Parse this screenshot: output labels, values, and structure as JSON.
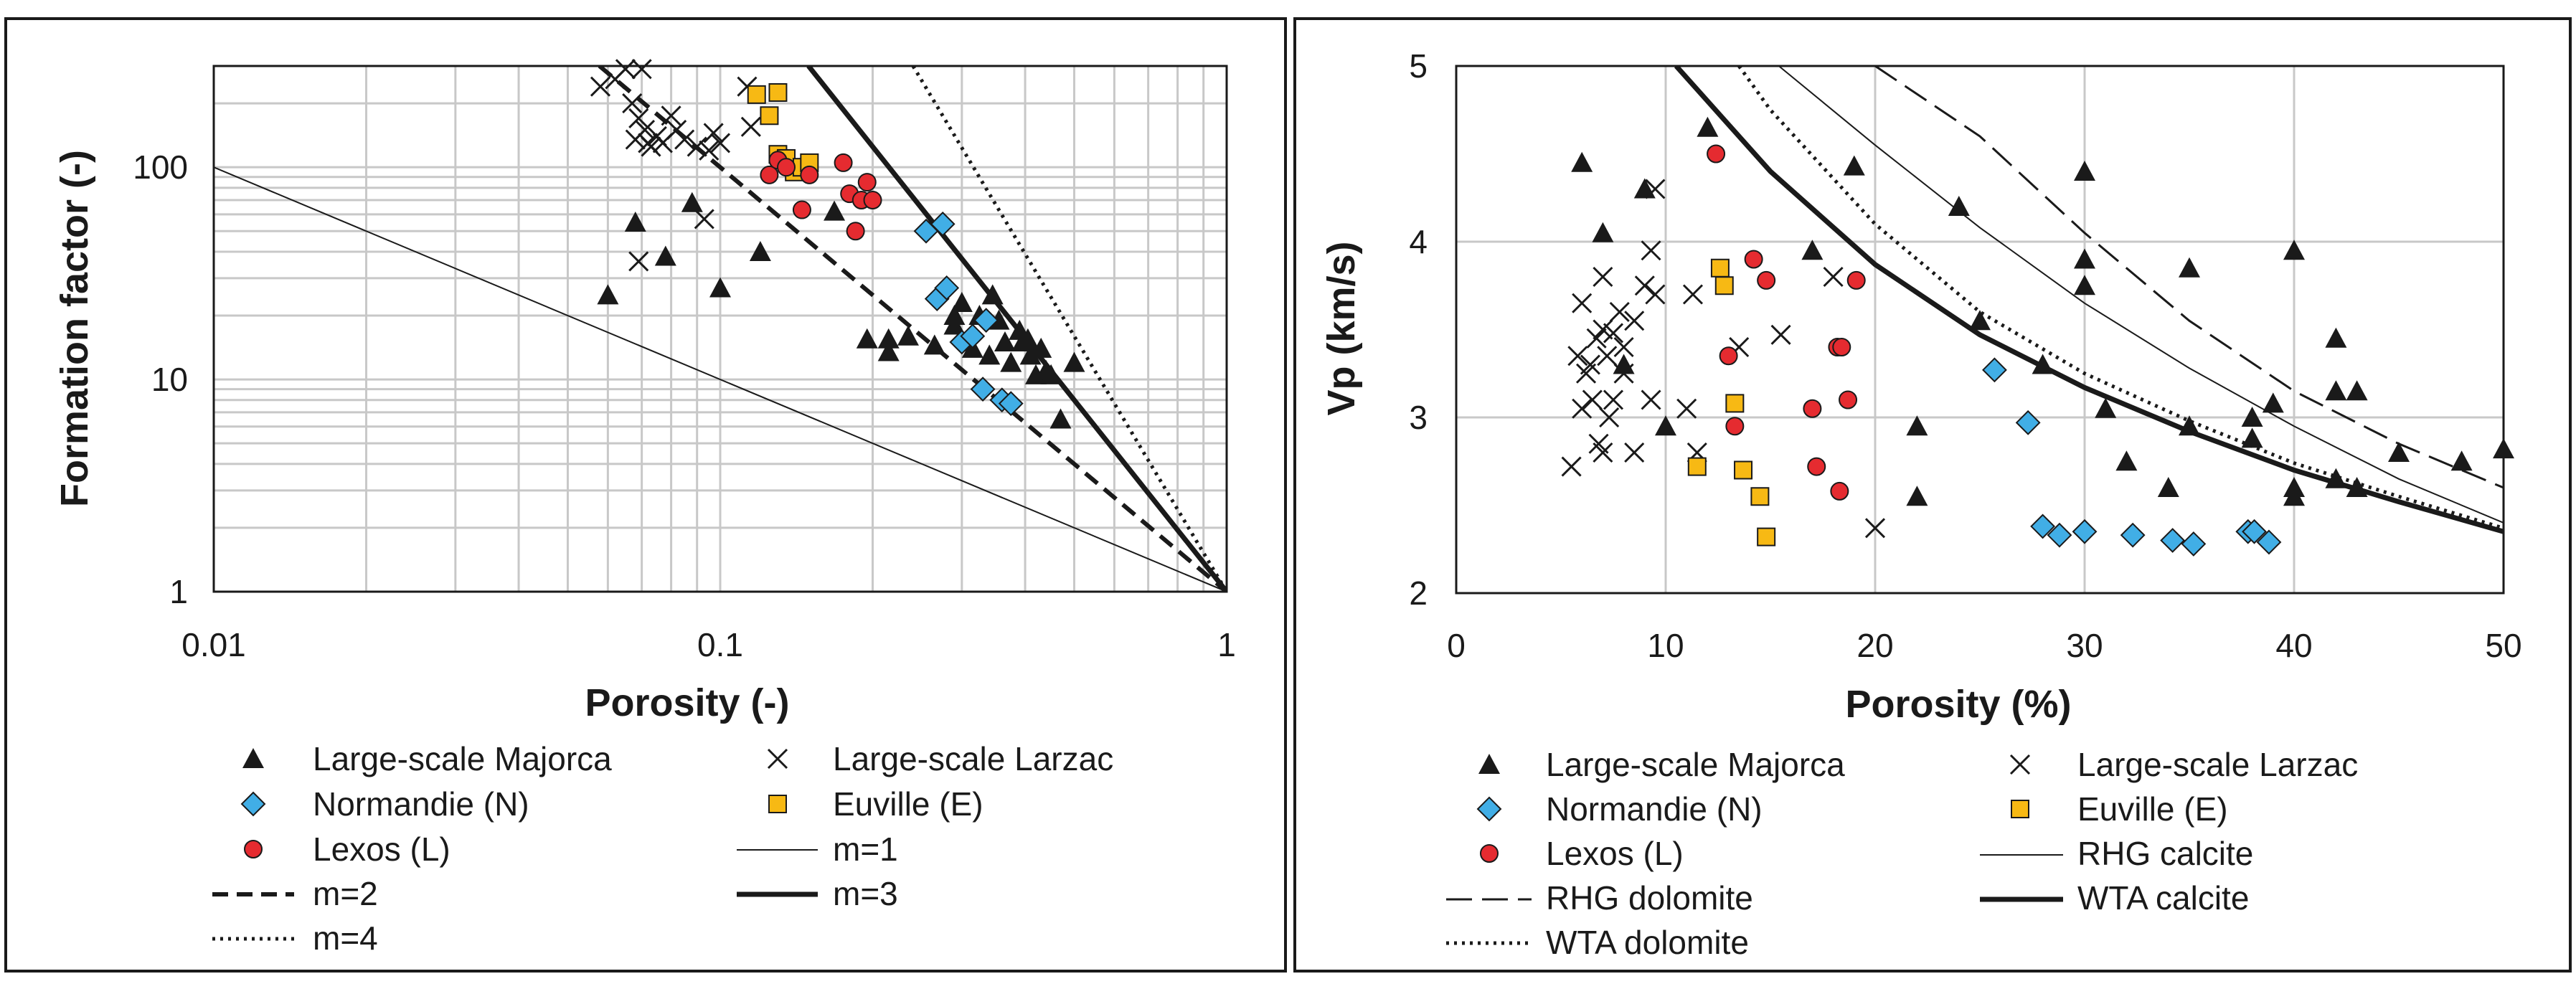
{
  "colors": {
    "triangle": "#1a1a1a",
    "normandie": "#41aee6",
    "euville": "#f7b914",
    "lexos": "#e52b30",
    "grid": "#c8c8c8"
  },
  "chart_data": [
    {
      "type": "scatter",
      "x_scale": "log",
      "y_scale": "log",
      "xlabel": "Porosity (-)",
      "ylabel": "Formation factor (-)",
      "xlim": [
        0.01,
        1
      ],
      "ylim": [
        1,
        300
      ],
      "x_ticks": [
        {
          "v": 0.01,
          "label": "0.01"
        },
        {
          "v": 0.1,
          "label": "0.1"
        },
        {
          "v": 1,
          "label": "1"
        }
      ],
      "y_ticks": [
        {
          "v": 1,
          "label": "1"
        },
        {
          "v": 10,
          "label": "10"
        },
        {
          "v": 100,
          "label": "100"
        }
      ],
      "legend_position": "bottom",
      "series": [
        {
          "name": "Large-scale Majorca",
          "marker": "triangle",
          "points": [
            [
              0.06,
              25
            ],
            [
              0.068,
              55
            ],
            [
              0.078,
              38
            ],
            [
              0.088,
              68
            ],
            [
              0.1,
              27
            ],
            [
              0.12,
              40
            ],
            [
              0.168,
              62
            ],
            [
              0.195,
              15.5
            ],
            [
              0.215,
              13.5
            ],
            [
              0.215,
              15.5
            ],
            [
              0.235,
              16
            ],
            [
              0.265,
              14.5
            ],
            [
              0.29,
              18
            ],
            [
              0.29,
              20
            ],
            [
              0.3,
              23
            ],
            [
              0.315,
              14
            ],
            [
              0.325,
              20
            ],
            [
              0.34,
              13
            ],
            [
              0.345,
              25
            ],
            [
              0.355,
              19
            ],
            [
              0.365,
              15
            ],
            [
              0.375,
              12
            ],
            [
              0.39,
              17
            ],
            [
              0.395,
              15
            ],
            [
              0.405,
              15.5
            ],
            [
              0.41,
              13
            ],
            [
              0.42,
              10.5
            ],
            [
              0.43,
              14
            ],
            [
              0.44,
              11
            ],
            [
              0.45,
              10.5
            ],
            [
              0.47,
              6.5
            ],
            [
              0.5,
              12
            ]
          ]
        },
        {
          "name": "Large-scale Larzac",
          "marker": "cross",
          "points": [
            [
              0.058,
              240
            ],
            [
              0.062,
              260
            ],
            [
              0.065,
              290
            ],
            [
              0.067,
              200
            ],
            [
              0.068,
              135
            ],
            [
              0.069,
              170
            ],
            [
              0.07,
              290
            ],
            [
              0.071,
              150
            ],
            [
              0.072,
              130
            ],
            [
              0.073,
              125
            ],
            [
              0.075,
              140
            ],
            [
              0.077,
              130
            ],
            [
              0.08,
              175
            ],
            [
              0.082,
              150
            ],
            [
              0.085,
              135
            ],
            [
              0.09,
              125
            ],
            [
              0.095,
              120
            ],
            [
              0.097,
              145
            ],
            [
              0.1,
              130
            ],
            [
              0.113,
              240
            ],
            [
              0.115,
              155
            ],
            [
              0.069,
              36
            ],
            [
              0.093,
              57
            ]
          ]
        },
        {
          "name": "Normandie (N)",
          "marker": "diamond",
          "points": [
            [
              0.255,
              50
            ],
            [
              0.275,
              54
            ],
            [
              0.268,
              24
            ],
            [
              0.28,
              27
            ],
            [
              0.3,
              15
            ],
            [
              0.315,
              16
            ],
            [
              0.335,
              19
            ],
            [
              0.33,
              9
            ],
            [
              0.36,
              8
            ],
            [
              0.375,
              7.7
            ]
          ]
        },
        {
          "name": "Euville (E)",
          "marker": "square",
          "points": [
            [
              0.118,
              220
            ],
            [
              0.125,
              175
            ],
            [
              0.13,
              225
            ],
            [
              0.13,
              115
            ],
            [
              0.135,
              110
            ],
            [
              0.14,
              95
            ],
            [
              0.145,
              100
            ],
            [
              0.15,
              105
            ]
          ]
        },
        {
          "name": "Lexos (L)",
          "marker": "circle",
          "points": [
            [
              0.125,
              92
            ],
            [
              0.13,
              108
            ],
            [
              0.135,
              100
            ],
            [
              0.145,
              63
            ],
            [
              0.15,
              92
            ],
            [
              0.175,
              105
            ],
            [
              0.18,
              75
            ],
            [
              0.185,
              50
            ],
            [
              0.19,
              70
            ],
            [
              0.195,
              85
            ],
            [
              0.2,
              70
            ]
          ]
        },
        {
          "name": "m=1",
          "line": "thin",
          "exponent": 1
        },
        {
          "name": "m=2",
          "line": "dashed",
          "exponent": 2
        },
        {
          "name": "m=3",
          "line": "thick",
          "exponent": 3
        },
        {
          "name": "m=4",
          "line": "dotted",
          "exponent": 4
        }
      ]
    },
    {
      "type": "scatter",
      "x_scale": "linear",
      "y_scale": "linear",
      "xlabel": "Porosity (%)",
      "ylabel": "Vp (km/s)",
      "xlim": [
        0,
        50
      ],
      "ylim": [
        2,
        5
      ],
      "x_ticks": [
        {
          "v": 0,
          "label": "0"
        },
        {
          "v": 10,
          "label": "10"
        },
        {
          "v": 20,
          "label": "20"
        },
        {
          "v": 30,
          "label": "30"
        },
        {
          "v": 40,
          "label": "40"
        },
        {
          "v": 50,
          "label": "50"
        }
      ],
      "y_ticks": [
        {
          "v": 2,
          "label": "2"
        },
        {
          "v": 3,
          "label": "3"
        },
        {
          "v": 4,
          "label": "4"
        },
        {
          "v": 5,
          "label": "5"
        }
      ],
      "legend_position": "bottom",
      "series": [
        {
          "name": "Large-scale Majorca",
          "marker": "triangle",
          "points": [
            [
              6,
              4.45
            ],
            [
              7,
              4.05
            ],
            [
              8,
              3.3
            ],
            [
              9,
              4.3
            ],
            [
              10,
              2.95
            ],
            [
              12,
              4.65
            ],
            [
              17,
              3.95
            ],
            [
              19,
              4.43
            ],
            [
              22,
              2.95
            ],
            [
              22,
              2.55
            ],
            [
              24,
              4.2
            ],
            [
              25,
              3.55
            ],
            [
              28,
              3.3
            ],
            [
              30,
              4.4
            ],
            [
              30,
              3.9
            ],
            [
              30,
              3.75
            ],
            [
              31,
              3.05
            ],
            [
              32,
              2.75
            ],
            [
              35,
              3.85
            ],
            [
              35,
              2.95
            ],
            [
              38,
              3.0
            ],
            [
              38,
              2.88
            ],
            [
              39,
              3.08
            ],
            [
              40,
              3.95
            ],
            [
              40,
              2.55
            ],
            [
              40,
              2.6
            ],
            [
              42,
              3.45
            ],
            [
              42,
              3.15
            ],
            [
              42,
              2.65
            ],
            [
              43,
              3.15
            ],
            [
              43,
              2.6
            ],
            [
              45,
              2.8
            ],
            [
              48,
              2.75
            ],
            [
              50,
              2.82
            ],
            [
              34,
              2.6
            ]
          ]
        },
        {
          "name": "Large-scale Larzac",
          "marker": "cross",
          "points": [
            [
              5.5,
              2.72
            ],
            [
              5.8,
              3.35
            ],
            [
              6,
              3.65
            ],
            [
              6,
              3.05
            ],
            [
              6.2,
              3.25
            ],
            [
              6.4,
              3.3
            ],
            [
              6.5,
              3.1
            ],
            [
              6.7,
              3.45
            ],
            [
              6.8,
              2.85
            ],
            [
              7,
              3.5
            ],
            [
              7,
              3.8
            ],
            [
              7.2,
              3.35
            ],
            [
              7.3,
              3.0
            ],
            [
              7.5,
              3.48
            ],
            [
              7.5,
              3.1
            ],
            [
              7.8,
              3.6
            ],
            [
              8,
              3.4
            ],
            [
              8,
              3.25
            ],
            [
              8.5,
              3.55
            ],
            [
              9,
              3.75
            ],
            [
              9.3,
              3.95
            ],
            [
              9.5,
              3.7
            ],
            [
              9.5,
              4.3
            ],
            [
              8.5,
              2.8
            ],
            [
              11,
              3.05
            ],
            [
              11.3,
              3.7
            ],
            [
              11.5,
              2.8
            ],
            [
              13.5,
              3.4
            ],
            [
              15.5,
              3.47
            ],
            [
              18,
              3.8
            ],
            [
              20,
              2.37
            ],
            [
              9.3,
              3.1
            ],
            [
              7,
              2.8
            ]
          ]
        },
        {
          "name": "Normandie (N)",
          "marker": "diamond",
          "points": [
            [
              25.7,
              3.27
            ],
            [
              27.3,
              2.97
            ],
            [
              28,
              2.38
            ],
            [
              28.8,
              2.33
            ],
            [
              30,
              2.35
            ],
            [
              32.3,
              2.33
            ],
            [
              34.2,
              2.3
            ],
            [
              35.2,
              2.28
            ],
            [
              37.8,
              2.35
            ],
            [
              38.1,
              2.35
            ],
            [
              38.8,
              2.29
            ]
          ]
        },
        {
          "name": "Euville (E)",
          "marker": "square",
          "points": [
            [
              12.6,
              3.85
            ],
            [
              12.8,
              3.75
            ],
            [
              13.3,
              3.08
            ],
            [
              11.5,
              2.72
            ],
            [
              13.7,
              2.7
            ],
            [
              14.5,
              2.55
            ],
            [
              14.8,
              2.32
            ]
          ]
        },
        {
          "name": "Lexos (L)",
          "marker": "circle",
          "points": [
            [
              12.4,
              4.5
            ],
            [
              14.2,
              3.9
            ],
            [
              14.8,
              3.78
            ],
            [
              13,
              3.35
            ],
            [
              13.3,
              2.95
            ],
            [
              17,
              3.05
            ],
            [
              17.2,
              2.72
            ],
            [
              18.2,
              3.4
            ],
            [
              18.4,
              3.4
            ],
            [
              18.3,
              2.58
            ],
            [
              18.7,
              3.1
            ],
            [
              19.1,
              3.78
            ]
          ]
        },
        {
          "name": "RHG calcite",
          "line": "thin",
          "points": [
            [
              15.4,
              5.0
            ],
            [
              20,
              4.55
            ],
            [
              25,
              4.08
            ],
            [
              30,
              3.65
            ],
            [
              35,
              3.28
            ],
            [
              40,
              2.95
            ],
            [
              45,
              2.65
            ],
            [
              50,
              2.4
            ]
          ]
        },
        {
          "name": "RHG dolomite",
          "line": "dashed",
          "points": [
            [
              20,
              5.0
            ],
            [
              25,
              4.6
            ],
            [
              30,
              4.05
            ],
            [
              35,
              3.55
            ],
            [
              40,
              3.15
            ],
            [
              45,
              2.85
            ],
            [
              50,
              2.6
            ]
          ]
        },
        {
          "name": "WTA calcite",
          "line": "thick",
          "points": [
            [
              10.5,
              5.0
            ],
            [
              15,
              4.4
            ],
            [
              20,
              3.87
            ],
            [
              25,
              3.47
            ],
            [
              30,
              3.17
            ],
            [
              35,
              2.92
            ],
            [
              40,
              2.7
            ],
            [
              45,
              2.52
            ],
            [
              50,
              2.35
            ]
          ]
        },
        {
          "name": "WTA dolomite",
          "line": "dotted",
          "points": [
            [
              13.5,
              5.0
            ],
            [
              15,
              4.75
            ],
            [
              20,
              4.1
            ],
            [
              25,
              3.6
            ],
            [
              30,
              3.25
            ],
            [
              35,
              2.98
            ],
            [
              40,
              2.74
            ],
            [
              45,
              2.55
            ],
            [
              50,
              2.37
            ]
          ]
        }
      ]
    }
  ]
}
